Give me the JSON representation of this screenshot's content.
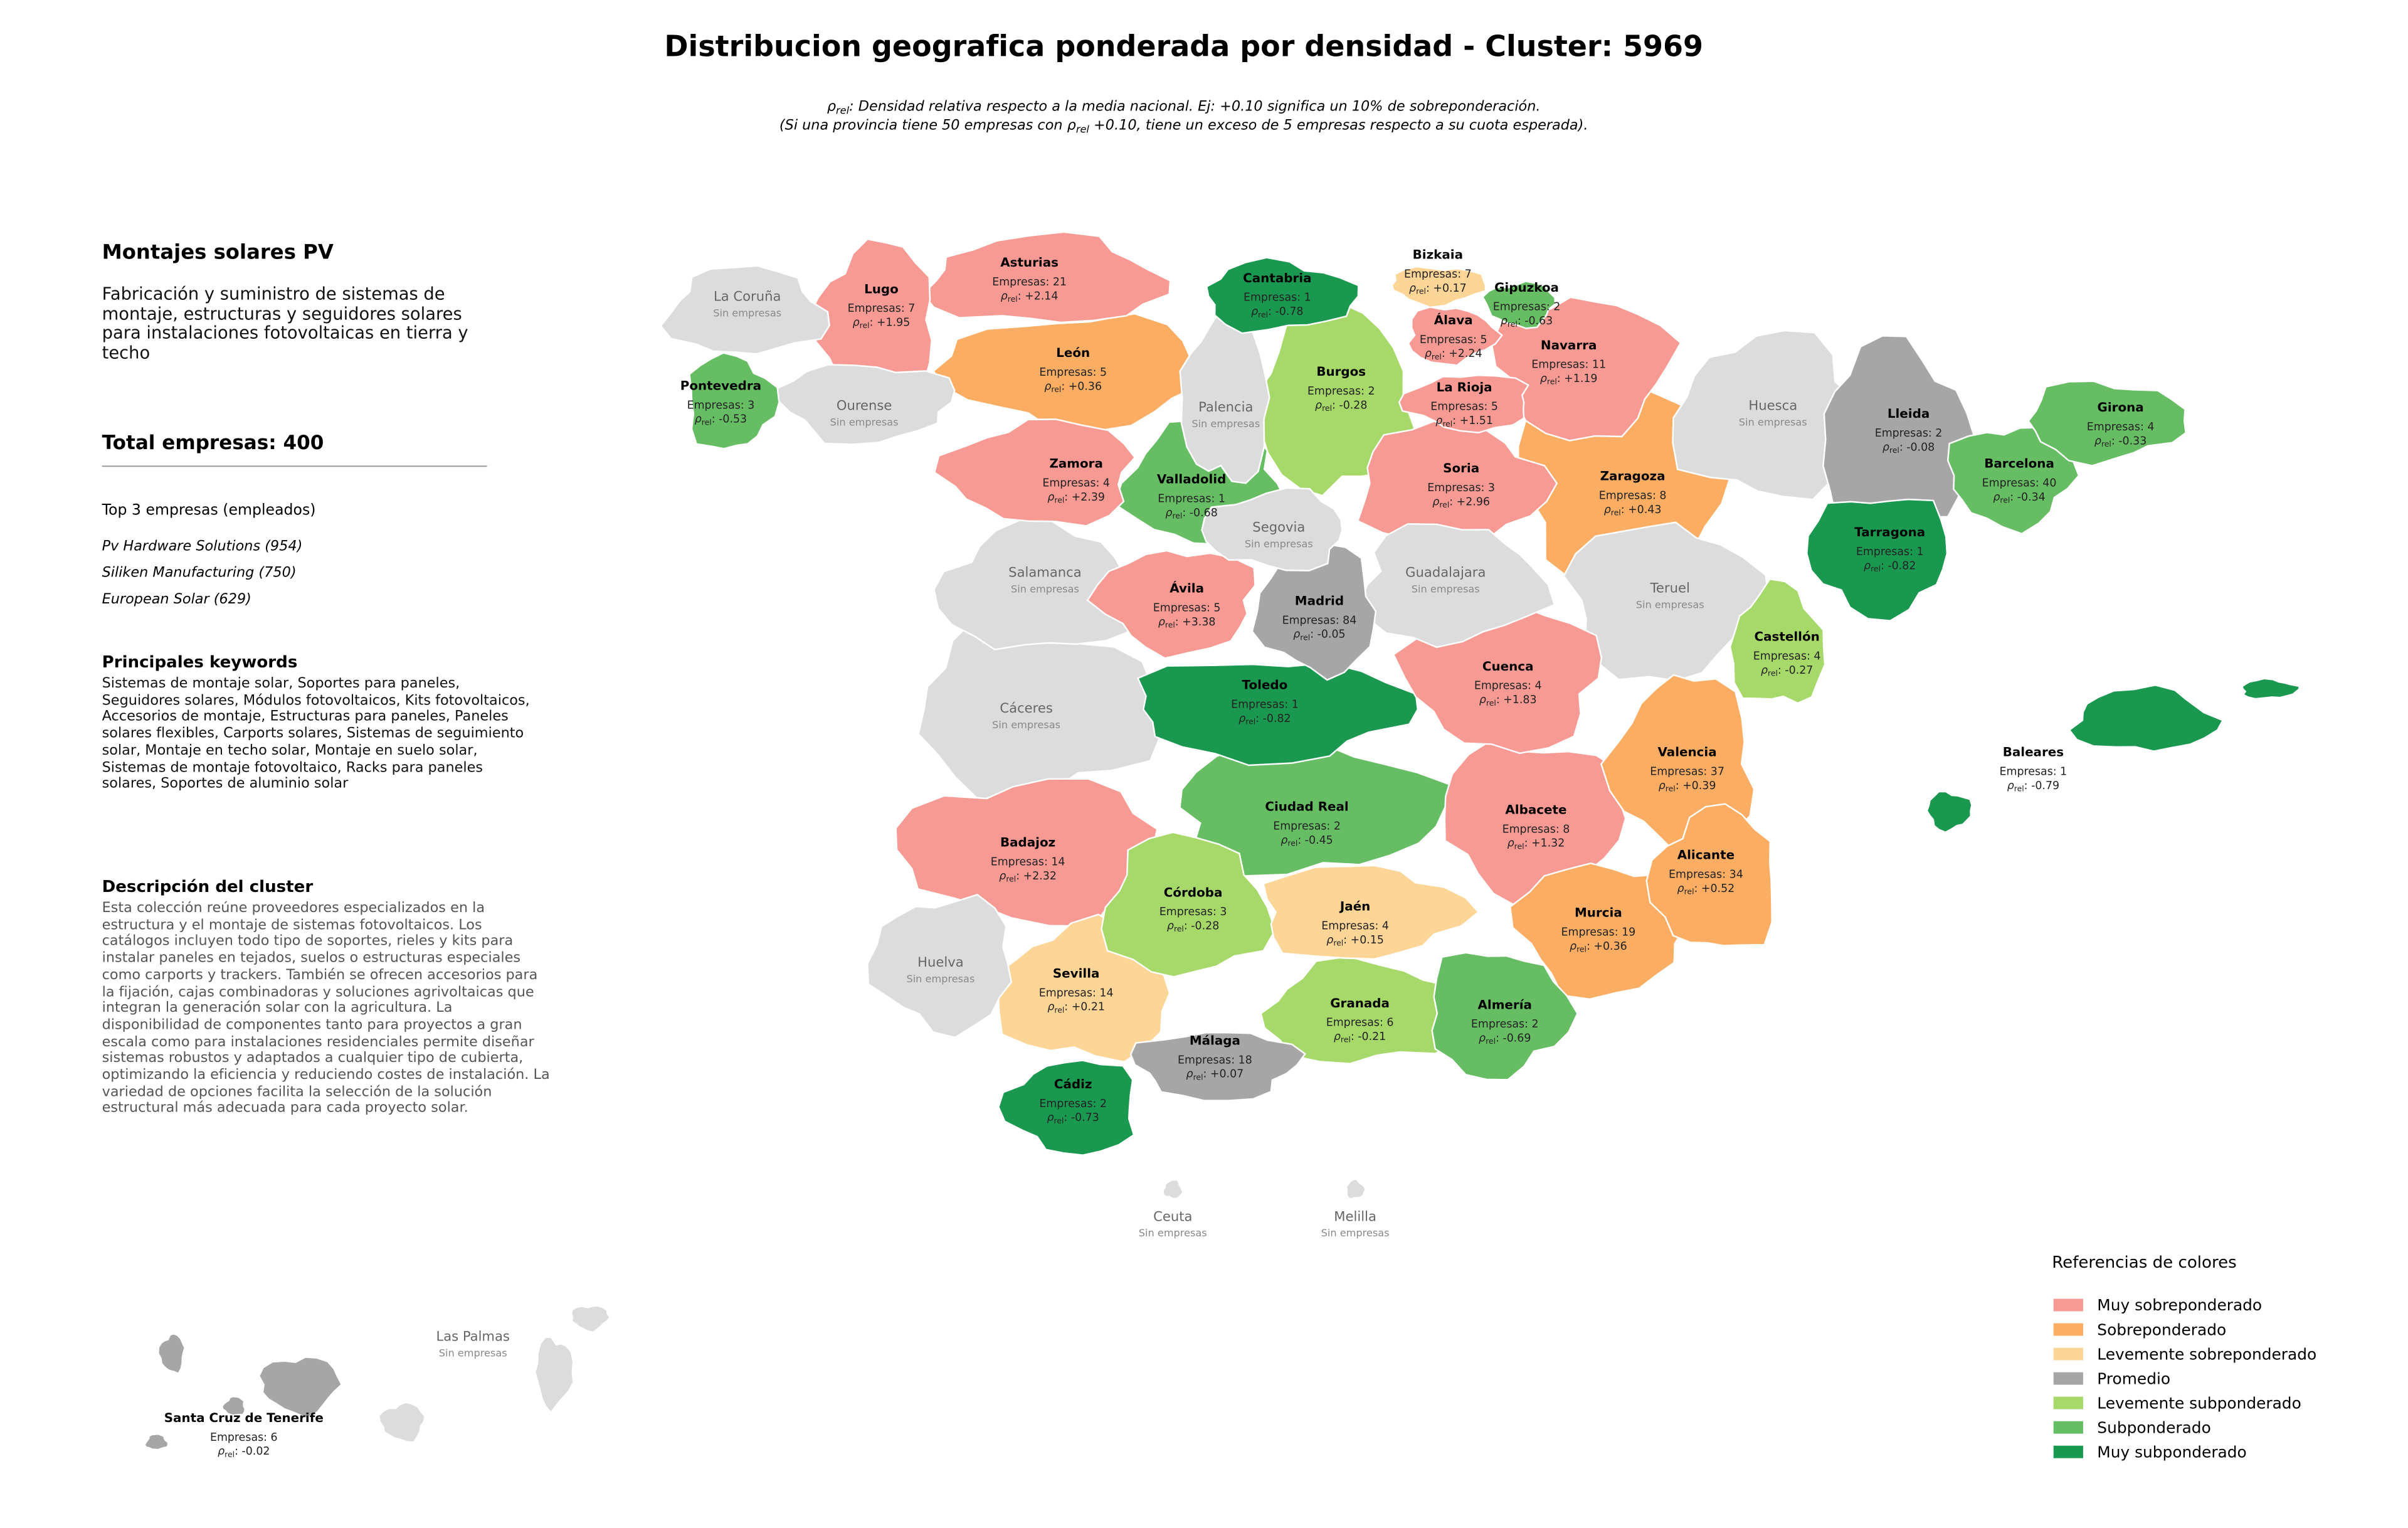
{
  "title": "Distribucion geografica ponderada por densidad - Cluster: 5969",
  "rho_symbol": "ρ",
  "rho_sub": "rel",
  "rho_sep": ": ",
  "subtitle": {
    "line1_after": ": Densidad relativa respecto a la media nacional. Ej: +0.10 significa un 10% de sobreponderación.",
    "line2_before": "(Si una provincia tiene 50 empresas con ",
    "line2_after": " +0.10, tiene un exceso de 5 empresas respecto a su cuota esperada)."
  },
  "panel": {
    "heading": "Montajes solares PV",
    "description": "Fabricación y suministro de sistemas de montaje, estructuras y seguidores solares para instalaciones fotovoltaicas en tierra y techo",
    "total": "Total empresas: 400",
    "top_heading": "Top 3 empresas (empleados)",
    "top_companies": [
      "Pv Hardware Solutions (954)",
      "Siliken Manufacturing (750)",
      "European Solar (629)"
    ],
    "keywords_heading": "Principales keywords",
    "keywords": "Sistemas de montaje solar, Soportes para paneles, Seguidores solares, Módulos fotovoltaicos, Kits fotovoltaicos, Accesorios de montaje, Estructuras para paneles, Paneles solares flexibles, Carports solares, Sistemas de seguimiento solar, Montaje en techo solar, Montaje en suelo solar, Sistemas de montaje fotovoltaico, Racks para paneles solares, Soportes de aluminio solar",
    "cluster_heading": "Descripción del cluster",
    "cluster_text": "Esta colección reúne proveedores especializados en la estructura y el montaje de sistemas fotovoltaicos. Los catálogos incluyen todo tipo de soportes, rieles y kits para instalar paneles en tejados, suelos o estructuras especiales como carports y trackers. También se ofrecen accesorios para la fijación, cajas combinadoras y soluciones agrivoltaicas que integran la generación solar con la agricultura. La disponibilidad de componentes tanto para proyectos a gran escala como para instalaciones residenciales permite diseñar sistemas robustos y adaptados a cualquier tipo de cubierta, optimizando la eficiencia y reduciendo costes de instalación. La variedad de opciones facilita la selección de la solución estructural más adecuada para cada proyecto solar."
  },
  "no_companies_text": "Sin empresas",
  "empty_color": "#dcdcdc",
  "legend": {
    "title": "Referencias de colores",
    "items": [
      {
        "name": "Muy sobreponderado",
        "color": "#f79a93"
      },
      {
        "name": "Sobreponderado",
        "color": "#fbae63"
      },
      {
        "name": "Levemente sobreponderado",
        "color": "#fdd596"
      },
      {
        "name": "Promedio",
        "color": "#a6a6a6"
      },
      {
        "name": "Levemente subponderado",
        "color": "#a6d96a"
      },
      {
        "name": "Subponderado",
        "color": "#66bd63"
      },
      {
        "name": "Muy subponderado",
        "color": "#1a9850"
      }
    ]
  },
  "provinces": [
    {
      "name": "Asturias",
      "class": 0,
      "companies": "Empresas: 21",
      "rho": "+2.14"
    },
    {
      "name": "Cantabria",
      "class": 6,
      "companies": "Empresas: 1",
      "rho": "-0.78"
    },
    {
      "name": "Bizkaia",
      "class": 2,
      "companies": "Empresas: 7",
      "rho": "+0.17"
    },
    {
      "name": "Gipuzkoa",
      "class": 5,
      "companies": "Empresas: 2",
      "rho": "-0.63"
    },
    {
      "name": "Lugo",
      "class": 0,
      "companies": "Empresas: 7",
      "rho": "+1.95"
    },
    {
      "name": "La Coruña",
      "empty": true
    },
    {
      "name": "Pontevedra",
      "class": 5,
      "companies": "Empresas: 3",
      "rho": "-0.53"
    },
    {
      "name": "Ourense",
      "empty": true
    },
    {
      "name": "León",
      "class": 1,
      "companies": "Empresas: 5",
      "rho": "+0.36"
    },
    {
      "name": "Palencia",
      "empty": true
    },
    {
      "name": "Burgos",
      "class": 4,
      "companies": "Empresas: 2",
      "rho": "-0.28"
    },
    {
      "name": "Álava",
      "class": 0,
      "companies": "Empresas: 5",
      "rho": "+2.24"
    },
    {
      "name": "Navarra",
      "class": 0,
      "companies": "Empresas: 11",
      "rho": "+1.19"
    },
    {
      "name": "La Rioja",
      "class": 0,
      "companies": "Empresas: 5",
      "rho": "+1.51"
    },
    {
      "name": "Huesca",
      "empty": true
    },
    {
      "name": "Lleida",
      "class": 3,
      "companies": "Empresas: 2",
      "rho": "-0.08"
    },
    {
      "name": "Girona",
      "class": 5,
      "companies": "Empresas: 4",
      "rho": "-0.33"
    },
    {
      "name": "Barcelona",
      "class": 5,
      "companies": "Empresas: 40",
      "rho": "-0.34"
    },
    {
      "name": "Zamora",
      "class": 0,
      "companies": "Empresas: 4",
      "rho": "+2.39"
    },
    {
      "name": "Valladolid",
      "class": 5,
      "companies": "Empresas: 1",
      "rho": "-0.68"
    },
    {
      "name": "Soria",
      "class": 0,
      "companies": "Empresas: 3",
      "rho": "+2.96"
    },
    {
      "name": "Zaragoza",
      "class": 1,
      "companies": "Empresas: 8",
      "rho": "+0.43"
    },
    {
      "name": "Tarragona",
      "class": 6,
      "companies": "Empresas: 1",
      "rho": "-0.82"
    },
    {
      "name": "Segovia",
      "empty": true
    },
    {
      "name": "Salamanca",
      "empty": true
    },
    {
      "name": "Guadalajara",
      "empty": true
    },
    {
      "name": "Teruel",
      "empty": true
    },
    {
      "name": "Ávila",
      "class": 0,
      "companies": "Empresas: 5",
      "rho": "+3.38"
    },
    {
      "name": "Madrid",
      "class": 3,
      "companies": "Empresas: 84",
      "rho": "-0.05"
    },
    {
      "name": "Castellón",
      "class": 4,
      "companies": "Empresas: 4",
      "rho": "-0.27"
    },
    {
      "name": "Cáceres",
      "empty": true
    },
    {
      "name": "Toledo",
      "class": 6,
      "companies": "Empresas: 1",
      "rho": "-0.82"
    },
    {
      "name": "Cuenca",
      "class": 0,
      "companies": "Empresas: 4",
      "rho": "+1.83"
    },
    {
      "name": "Valencia",
      "class": 1,
      "companies": "Empresas: 37",
      "rho": "+0.39"
    },
    {
      "name": "Baleares",
      "class": 6,
      "companies": "Empresas: 1",
      "rho": "-0.79"
    },
    {
      "name": "Ciudad Real",
      "class": 5,
      "companies": "Empresas: 2",
      "rho": "-0.45"
    },
    {
      "name": "Albacete",
      "class": 0,
      "companies": "Empresas: 8",
      "rho": "+1.32"
    },
    {
      "name": "Badajoz",
      "class": 0,
      "companies": "Empresas: 14",
      "rho": "+2.32"
    },
    {
      "name": "Alicante",
      "class": 1,
      "companies": "Empresas: 34",
      "rho": "+0.52"
    },
    {
      "name": "Córdoba",
      "class": 4,
      "companies": "Empresas: 3",
      "rho": "-0.28"
    },
    {
      "name": "Jaén",
      "class": 2,
      "companies": "Empresas: 4",
      "rho": "+0.15"
    },
    {
      "name": "Murcia",
      "class": 1,
      "companies": "Empresas: 19",
      "rho": "+0.36"
    },
    {
      "name": "Huelva",
      "empty": true
    },
    {
      "name": "Sevilla",
      "class": 2,
      "companies": "Empresas: 14",
      "rho": "+0.21"
    },
    {
      "name": "Granada",
      "class": 4,
      "companies": "Empresas: 6",
      "rho": "-0.21"
    },
    {
      "name": "Almería",
      "class": 5,
      "companies": "Empresas: 2",
      "rho": "-0.69"
    },
    {
      "name": "Málaga",
      "class": 3,
      "companies": "Empresas: 18",
      "rho": "+0.07"
    },
    {
      "name": "Cádiz",
      "class": 6,
      "companies": "Empresas: 2",
      "rho": "-0.73"
    },
    {
      "name": "Ceuta",
      "empty": true
    },
    {
      "name": "Melilla",
      "empty": true
    },
    {
      "name": "Las Palmas",
      "empty": true
    },
    {
      "name": "Santa Cruz de Tenerife",
      "class": 3,
      "companies": "Empresas: 6",
      "rho": "-0.02"
    }
  ]
}
